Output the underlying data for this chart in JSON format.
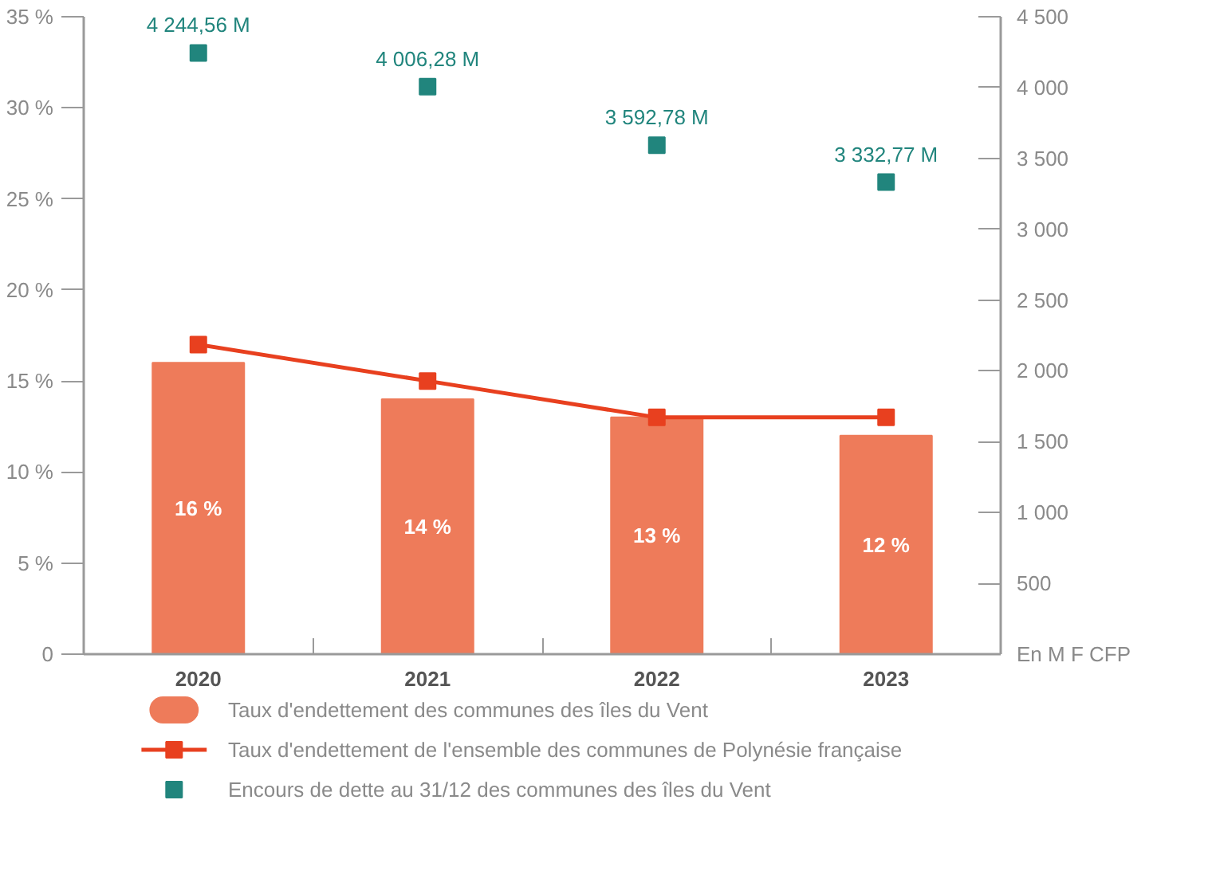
{
  "chart_data": {
    "type": "bar",
    "categories": [
      "2020",
      "2021",
      "2022",
      "2023"
    ],
    "series": [
      {
        "name": "Taux d'endettement des communes des îles du Vent",
        "color": "#ee7b5a",
        "values": [
          16,
          14,
          13,
          12
        ],
        "value_labels": [
          "16 %",
          "14 %",
          "13 %",
          "12 %"
        ]
      },
      {
        "name": "Taux d'endettement de l'ensemble des communes de Polynésie française",
        "type": "line",
        "color": "#e8401f",
        "marker": "square",
        "line_style": "solid",
        "values": [
          17,
          15,
          13,
          13
        ]
      },
      {
        "name": "Encours de dette au 31/12 des communes des îles du Vent",
        "type": "scatter",
        "axis": "y2",
        "color": "#21857d",
        "marker": "square",
        "values": [
          4244.56,
          4006.28,
          3592.78,
          3332.77
        ],
        "value_labels": [
          "4 244,56 M",
          "4 006,28 M",
          "3 592,78 M",
          "3 332,77 M"
        ]
      }
    ],
    "ylim": [
      0,
      35
    ],
    "yticks": [
      0,
      {
        "value": 5,
        "label": "5 %"
      },
      {
        "value": 10,
        "label": "10 %"
      },
      {
        "value": 15,
        "label": "15 %"
      },
      {
        "value": 20,
        "label": "20 %"
      },
      {
        "value": 25,
        "label": "25 %"
      },
      {
        "value": 30,
        "label": "30 %"
      },
      {
        "value": 35,
        "label": "35 %"
      }
    ],
    "y2lim": [
      0,
      4500
    ],
    "y2ticks": [
      {
        "value": 0,
        "label": "En M F CFP"
      },
      500,
      {
        "value": 1000,
        "label": "1 000"
      },
      {
        "value": 1500,
        "label": "1 500"
      },
      {
        "value": 2000,
        "label": "2 000"
      },
      {
        "value": 2500,
        "label": "2 500"
      },
      {
        "value": 3000,
        "label": "3 000"
      },
      {
        "value": 3500,
        "label": "3 500"
      },
      {
        "value": 4000,
        "label": "4 000"
      },
      {
        "value": 4500,
        "label": "4 500"
      }
    ],
    "grid": false,
    "legend": "bottom"
  }
}
